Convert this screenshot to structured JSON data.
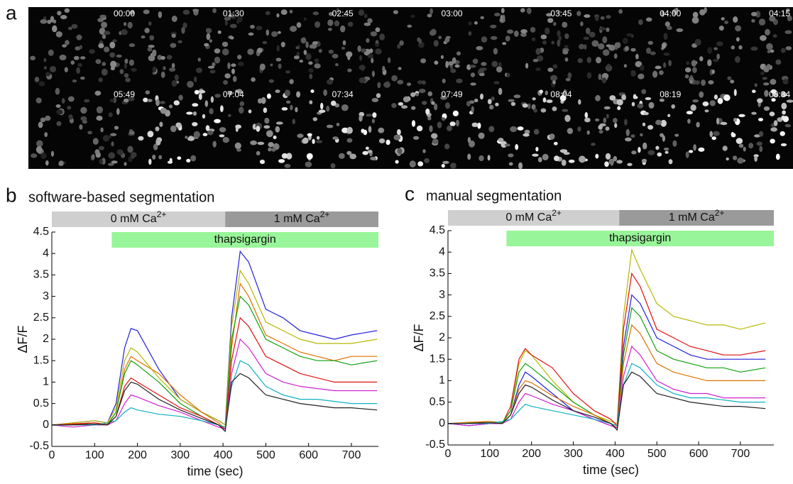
{
  "panel_a": {
    "label": "a",
    "timestamps": [
      "00:00",
      "01:30",
      "02:45",
      "03:00",
      "03:45",
      "04:00",
      "04:15",
      "05:49",
      "07:04",
      "07:34",
      "07:49",
      "08:04",
      "08:19",
      "08:34"
    ]
  },
  "chart_data": [
    {
      "type": "line",
      "panel_label": "b",
      "title": "software-based segmentation",
      "xlabel": "time (sec)",
      "ylabel": "ΔF/F",
      "xlim": [
        0,
        763
      ],
      "ylim": [
        -0.5,
        4.5
      ],
      "xticks": [
        0,
        100,
        200,
        300,
        400,
        500,
        600,
        700
      ],
      "yticks": [
        -0.5,
        0,
        0.5,
        1,
        1.5,
        2,
        2.5,
        3,
        3.5,
        4,
        4.5
      ],
      "bands": [
        {
          "text": "0 mM Ca",
          "sup": "2+",
          "start": 0,
          "end": 405,
          "color": "#cfcfcf",
          "row": 0
        },
        {
          "text": "1 mM Ca",
          "sup": "2+",
          "start": 405,
          "end": 763,
          "color": "#9a9a9a",
          "row": 0
        },
        {
          "text": "thapsigargin",
          "start": 140,
          "end": 763,
          "color": "#99f599",
          "row": 1
        }
      ],
      "x": [
        0,
        50,
        100,
        130,
        150,
        170,
        185,
        200,
        250,
        300,
        350,
        390,
        405,
        420,
        440,
        460,
        500,
        540,
        580,
        620,
        660,
        700,
        760
      ],
      "series": [
        {
          "color": "#2020e0",
          "values": [
            0,
            0.05,
            0.1,
            0.05,
            0.5,
            1.8,
            2.25,
            2.2,
            1.3,
            0.6,
            0.3,
            0.1,
            0,
            2.5,
            4.05,
            3.8,
            2.7,
            2.5,
            2.2,
            2.1,
            2.0,
            2.1,
            2.2
          ]
        },
        {
          "color": "#b5b800",
          "values": [
            0,
            0.05,
            0.1,
            0.05,
            0.4,
            1.5,
            1.8,
            1.7,
            1.1,
            0.6,
            0.3,
            0.1,
            0,
            2.3,
            3.6,
            3.3,
            2.4,
            2.2,
            2.0,
            1.9,
            1.9,
            1.9,
            2.0
          ]
        },
        {
          "color": "#e07000",
          "values": [
            0,
            0.03,
            0.05,
            0.02,
            0.3,
            1.3,
            1.6,
            1.5,
            1.2,
            0.7,
            0.3,
            0.05,
            -0.1,
            1.8,
            3.3,
            3.0,
            2.1,
            1.9,
            1.7,
            1.6,
            1.5,
            1.6,
            1.6
          ]
        },
        {
          "color": "#10a010",
          "values": [
            0,
            0,
            0.05,
            0,
            0.3,
            1.2,
            1.5,
            1.4,
            1.0,
            0.5,
            0.2,
            0,
            -0.1,
            2.0,
            3.0,
            2.8,
            2.0,
            1.8,
            1.6,
            1.5,
            1.5,
            1.4,
            1.5
          ]
        },
        {
          "color": "#e01010",
          "values": [
            0,
            0.02,
            0.05,
            0,
            0.2,
            0.9,
            1.1,
            1.0,
            0.7,
            0.4,
            0.2,
            0,
            -0.1,
            1.5,
            2.5,
            2.3,
            1.6,
            1.4,
            1.2,
            1.1,
            1.0,
            1.0,
            1.0
          ]
        },
        {
          "color": "#d020d0",
          "values": [
            0,
            -0.05,
            0,
            0,
            0.1,
            0.5,
            0.7,
            0.65,
            0.45,
            0.3,
            0.1,
            -0.05,
            -0.1,
            1.2,
            2.0,
            1.8,
            1.2,
            1.0,
            0.9,
            0.85,
            0.8,
            0.8,
            0.8
          ]
        },
        {
          "color": "#10b0c0",
          "values": [
            0,
            0,
            0,
            0.05,
            0.1,
            0.3,
            0.4,
            0.35,
            0.25,
            0.2,
            0.1,
            0,
            -0.05,
            0.9,
            1.5,
            1.4,
            0.9,
            0.7,
            0.6,
            0.6,
            0.55,
            0.5,
            0.5
          ]
        },
        {
          "color": "#202020",
          "values": [
            0,
            0,
            0.02,
            0,
            0.2,
            0.8,
            1.0,
            0.95,
            0.6,
            0.35,
            0.15,
            0,
            -0.15,
            1.0,
            1.2,
            1.1,
            0.7,
            0.6,
            0.5,
            0.45,
            0.4,
            0.4,
            0.35
          ]
        }
      ]
    },
    {
      "type": "line",
      "panel_label": "c",
      "title": "manual segmentation",
      "xlabel": "time (sec)",
      "ylabel": "ΔF/F",
      "xlim": [
        0,
        780
      ],
      "ylim": [
        -0.5,
        4.5
      ],
      "xticks": [
        0,
        100,
        200,
        300,
        400,
        500,
        600,
        700
      ],
      "yticks": [
        -0.5,
        0,
        0.5,
        1,
        1.5,
        2,
        2.5,
        3,
        3.5,
        4,
        4.5
      ],
      "bands": [
        {
          "text": "0 mM Ca",
          "sup": "2+",
          "start": 0,
          "end": 410,
          "color": "#cfcfcf",
          "row": 0
        },
        {
          "text": "1 mM Ca",
          "sup": "2+",
          "start": 410,
          "end": 780,
          "color": "#9a9a9a",
          "row": 0
        },
        {
          "text": "thapsigargin",
          "start": 140,
          "end": 780,
          "color": "#99f599",
          "row": 1
        }
      ],
      "x": [
        0,
        50,
        100,
        130,
        150,
        170,
        185,
        200,
        250,
        300,
        350,
        390,
        405,
        420,
        440,
        460,
        500,
        540,
        580,
        620,
        660,
        700,
        760
      ],
      "series": [
        {
          "color": "#b5b800",
          "values": [
            0,
            0,
            0.05,
            0,
            0.3,
            1.4,
            1.7,
            1.6,
            1.0,
            0.5,
            0.2,
            0.05,
            0,
            2.5,
            4.05,
            3.6,
            2.8,
            2.5,
            2.4,
            2.3,
            2.3,
            2.2,
            2.35
          ]
        },
        {
          "color": "#e01010",
          "values": [
            0,
            0,
            0.05,
            0,
            0.4,
            1.5,
            1.75,
            1.6,
            1.3,
            0.7,
            0.3,
            0.1,
            -0.05,
            2.2,
            3.5,
            3.2,
            2.2,
            2.0,
            1.8,
            1.7,
            1.6,
            1.6,
            1.7
          ]
        },
        {
          "color": "#2020e0",
          "values": [
            0,
            -0.05,
            0,
            0,
            0.2,
            0.9,
            1.2,
            1.1,
            0.7,
            0.3,
            0.1,
            -0.05,
            -0.1,
            1.8,
            3.0,
            2.8,
            2.0,
            1.8,
            1.6,
            1.5,
            1.5,
            1.5,
            1.5
          ]
        },
        {
          "color": "#10a010",
          "values": [
            0,
            0.02,
            0.05,
            0.02,
            0.3,
            1.2,
            1.4,
            1.3,
            0.9,
            0.5,
            0.2,
            0,
            -0.1,
            1.6,
            2.7,
            2.5,
            1.7,
            1.5,
            1.4,
            1.3,
            1.3,
            1.2,
            1.3
          ]
        },
        {
          "color": "#e07000",
          "values": [
            0,
            0.03,
            0.05,
            0,
            0.2,
            0.8,
            1.0,
            0.95,
            0.65,
            0.4,
            0.2,
            0,
            -0.1,
            1.4,
            2.3,
            2.1,
            1.4,
            1.2,
            1.1,
            1.0,
            1.0,
            1.0,
            1.0
          ]
        },
        {
          "color": "#d020d0",
          "values": [
            0,
            -0.05,
            0,
            0,
            0.1,
            0.5,
            0.7,
            0.65,
            0.45,
            0.3,
            0.1,
            -0.05,
            -0.1,
            1.1,
            1.8,
            1.6,
            1.0,
            0.8,
            0.7,
            0.7,
            0.6,
            0.6,
            0.6
          ]
        },
        {
          "color": "#10b0c0",
          "values": [
            0,
            0,
            0,
            0.05,
            0.1,
            0.3,
            0.45,
            0.4,
            0.3,
            0.2,
            0.1,
            0,
            -0.05,
            0.9,
            1.4,
            1.3,
            0.9,
            0.7,
            0.6,
            0.6,
            0.55,
            0.5,
            0.5
          ]
        },
        {
          "color": "#202020",
          "values": [
            0,
            0,
            0.02,
            0,
            0.2,
            0.7,
            0.9,
            0.85,
            0.55,
            0.3,
            0.15,
            0,
            -0.15,
            0.9,
            1.2,
            1.1,
            0.7,
            0.6,
            0.5,
            0.45,
            0.4,
            0.4,
            0.35
          ]
        }
      ]
    }
  ]
}
